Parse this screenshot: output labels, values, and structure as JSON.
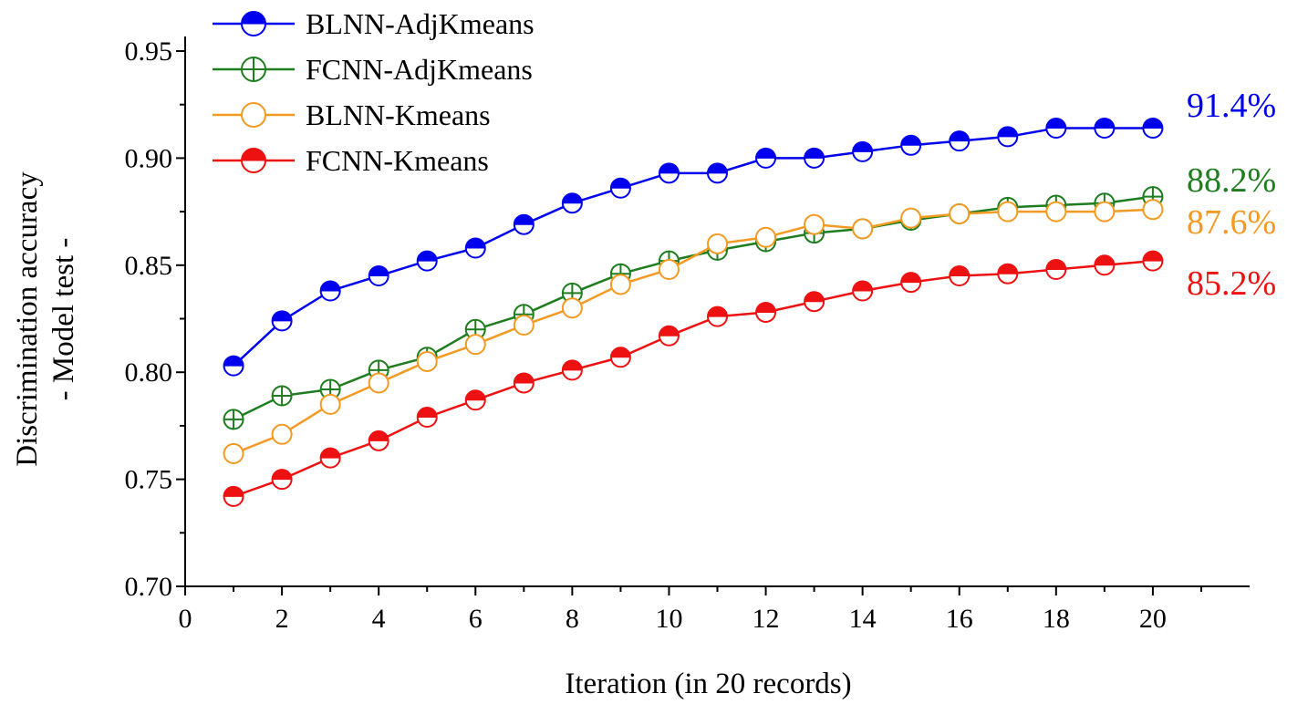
{
  "chart_data": {
    "type": "line",
    "title": "",
    "xlabel": "Iteration (in 20 records)",
    "ylabel": [
      "Discrimination accuracy",
      "- Model test -"
    ],
    "xlim": [
      0,
      22
    ],
    "ylim": [
      0.7,
      0.95
    ],
    "x_ticks": [
      0,
      2,
      4,
      6,
      8,
      10,
      12,
      14,
      16,
      18,
      20
    ],
    "x_tick_labels": [
      "0",
      "2",
      "4",
      "6",
      "8",
      "10",
      "12",
      "14",
      "16",
      "18",
      "20"
    ],
    "y_ticks": [
      0.7,
      0.75,
      0.8,
      0.85,
      0.9,
      0.95
    ],
    "y_tick_labels": [
      "0.70",
      "0.75",
      "0.80",
      "0.85",
      "0.90",
      "0.95"
    ],
    "grid": false,
    "legend_position": "top-left",
    "x": [
      1,
      2,
      3,
      4,
      5,
      6,
      7,
      8,
      9,
      10,
      11,
      12,
      13,
      14,
      15,
      16,
      17,
      18,
      19,
      20
    ],
    "series": [
      {
        "name": "BLNN-AdjKmeans",
        "color": "#0000ee",
        "marker": "half-filled-circle",
        "values": [
          0.803,
          0.824,
          0.838,
          0.845,
          0.852,
          0.858,
          0.869,
          0.879,
          0.886,
          0.893,
          0.893,
          0.9,
          0.9,
          0.903,
          0.906,
          0.908,
          0.91,
          0.914,
          0.914,
          0.914
        ],
        "end_label": "91.4%"
      },
      {
        "name": "FCNN-AdjKmeans",
        "color": "#1e7d1e",
        "marker": "circle-plus",
        "values": [
          0.778,
          0.789,
          0.792,
          0.801,
          0.807,
          0.82,
          0.827,
          0.837,
          0.846,
          0.852,
          0.857,
          0.861,
          0.865,
          0.867,
          0.871,
          0.874,
          0.877,
          0.878,
          0.879,
          0.882
        ],
        "end_label": "88.2%"
      },
      {
        "name": "BLNN-Kmeans",
        "color": "#f39a23",
        "marker": "open-circle",
        "values": [
          0.762,
          0.771,
          0.785,
          0.795,
          0.805,
          0.813,
          0.822,
          0.83,
          0.841,
          0.848,
          0.86,
          0.863,
          0.869,
          0.867,
          0.872,
          0.874,
          0.875,
          0.875,
          0.875,
          0.876
        ],
        "end_label": "87.6%"
      },
      {
        "name": "FCNN-Kmeans",
        "color": "#ee1111",
        "marker": "half-filled-circle",
        "values": [
          0.742,
          0.75,
          0.76,
          0.768,
          0.779,
          0.787,
          0.795,
          0.801,
          0.807,
          0.817,
          0.826,
          0.828,
          0.833,
          0.838,
          0.842,
          0.845,
          0.846,
          0.848,
          0.85,
          0.852
        ],
        "end_label": "85.2%"
      }
    ]
  }
}
